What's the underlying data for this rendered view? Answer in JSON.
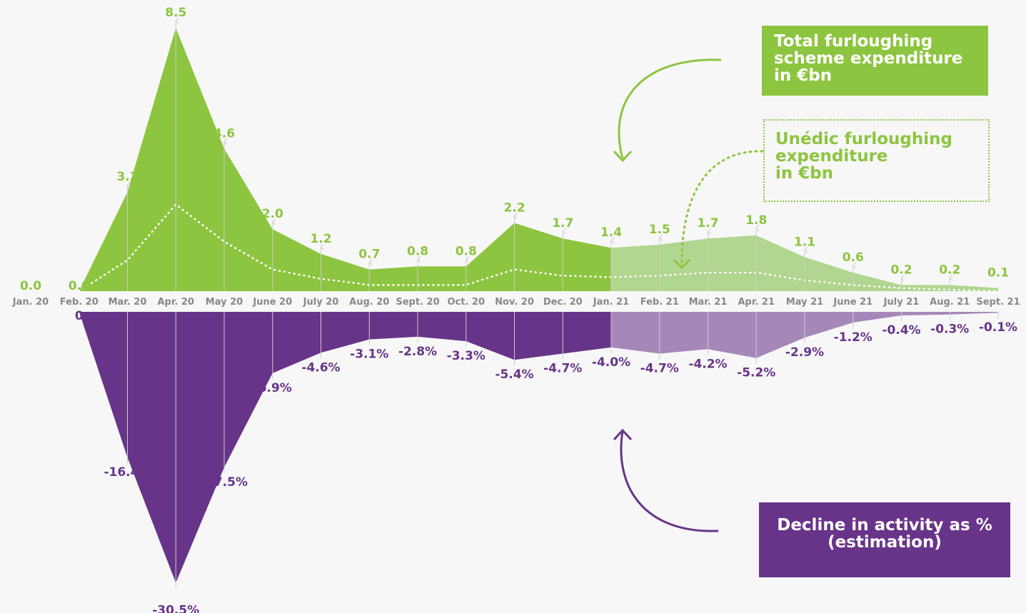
{
  "chart_data": {
    "type": "area",
    "categories": [
      "Jan. 20",
      "Feb. 20",
      "Mar. 20",
      "Apr. 20",
      "May 20",
      "June 20",
      "July 20",
      "Aug. 20",
      "Sept. 20",
      "Oct. 20",
      "Nov. 20",
      "Dec. 20",
      "Jan. 21",
      "Feb. 21",
      "Mar. 21",
      "Apr. 21",
      "May 21",
      "June 21",
      "July 21",
      "Aug. 21",
      "Sept. 21"
    ],
    "estimated_from_index": 12,
    "series": [
      {
        "name": "Total furloughing scheme expenditure in €bn",
        "values": [
          0.0,
          0.0,
          3.2,
          8.5,
          4.6,
          2.0,
          1.2,
          0.7,
          0.8,
          0.8,
          2.2,
          1.7,
          1.4,
          1.5,
          1.7,
          1.8,
          1.1,
          0.6,
          0.2,
          0.2,
          0.1
        ],
        "labels": [
          "0.0",
          "0.0",
          "3.2",
          "8.5",
          "4.6",
          "2.0",
          "1.2",
          "0.7",
          "0.8",
          "0.8",
          "2.2",
          "1.7",
          "1.4",
          "1.5",
          "1.7",
          "1.8",
          "1.1",
          "0.6",
          "0.2",
          "0.2",
          "0.1"
        ],
        "color": "#8dc540",
        "estimate_color": "#b0d68f"
      },
      {
        "name": "Unédic furloughing expenditure in €bn",
        "values": [
          0.0,
          0.0,
          1.0,
          2.8,
          1.6,
          0.7,
          0.4,
          0.2,
          0.2,
          0.2,
          0.7,
          0.5,
          0.45,
          0.5,
          0.6,
          0.6,
          0.35,
          0.2,
          0.1,
          0.05,
          0.0
        ],
        "style": "dotted",
        "color": "#ffffff"
      },
      {
        "name": "Decline in activity as % (estimation)",
        "values": [
          0,
          0,
          -16.4,
          -30.5,
          -17.5,
          -6.9,
          -4.6,
          -3.1,
          -2.8,
          -3.3,
          -5.4,
          -4.7,
          -4.0,
          -4.7,
          -4.2,
          -5.2,
          -2.9,
          -1.2,
          -0.4,
          -0.3,
          -0.1
        ],
        "labels": [
          "",
          "0",
          "-16.4%",
          "-30.5%",
          "-17.5%",
          "-6.9%",
          "-4.6%",
          "-3.1%",
          "-2.8%",
          "-3.3%",
          "-5.4%",
          "-4.7%",
          "-4.0%",
          "-4.7%",
          "-4.2%",
          "-5.2%",
          "-2.9%",
          "-1.2%",
          "-0.4%",
          "-0.3%",
          "-0.1%"
        ],
        "color": "#683489",
        "estimate_color": "#a687b9"
      }
    ],
    "colors": {
      "green": "#8dc540",
      "green_light": "#b0d68f",
      "purple": "#683489",
      "purple_light": "#a687b9",
      "axis_text": "#888888",
      "background": "#f7f7f7"
    }
  },
  "legend": {
    "total": [
      "Total furloughing",
      "scheme expenditure",
      "in €bn"
    ],
    "unedic": [
      "Unédic furloughing",
      "expenditure",
      "in €bn"
    ],
    "decline": [
      "Decline in activity as %",
      "(estimation)"
    ]
  }
}
